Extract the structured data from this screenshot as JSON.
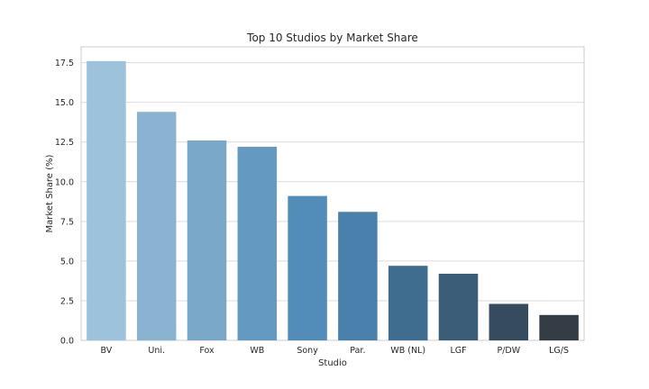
{
  "chart_data": {
    "type": "bar",
    "title": "Top 10 Studios by Market Share",
    "xlabel": "Studio",
    "ylabel": "Market Share (%)",
    "categories": [
      "BV",
      "Uni.",
      "Fox",
      "WB",
      "Sony",
      "Par.",
      "WB (NL)",
      "LGF",
      "P/DW",
      "LG/S"
    ],
    "values": [
      17.6,
      14.4,
      12.6,
      12.2,
      9.1,
      8.1,
      4.7,
      4.2,
      2.3,
      1.6
    ],
    "ylim": [
      0,
      18.5
    ],
    "yticks": [
      "0.0",
      "2.5",
      "5.0",
      "7.5",
      "10.0",
      "12.5",
      "15.0",
      "17.5"
    ],
    "grid": "horizontal",
    "colors": [
      "#9dc3dc",
      "#8ab3d1",
      "#7aa8c9",
      "#6499c2",
      "#528dba",
      "#4a80ac",
      "#3f6d8f",
      "#3b5d78",
      "#374b5e",
      "#343c45"
    ]
  }
}
